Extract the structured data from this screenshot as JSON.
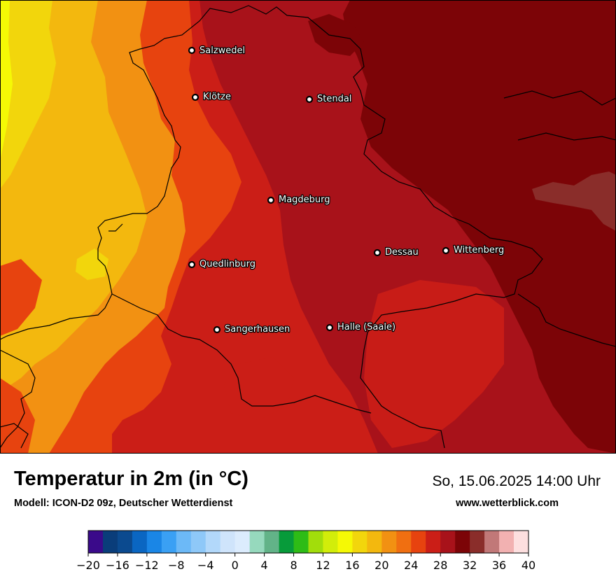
{
  "title": "Temperatur in 2m (in °C)",
  "model_info": "Modell: ICON-D2 09z, Deutscher Wetterdienst",
  "datetime": "So, 15.06.2025 14:00 Uhr",
  "website": "www.wetterblick.com",
  "cities": [
    {
      "name": "Salzwedel"
    },
    {
      "name": "Klötze"
    },
    {
      "name": "Stendal"
    },
    {
      "name": "Magdeburg"
    },
    {
      "name": "Dessau"
    },
    {
      "name": "Wittenberg"
    },
    {
      "name": "Quedlinburg"
    },
    {
      "name": "Sangerhausen"
    },
    {
      "name": "Halle (Saale)"
    }
  ],
  "legend": {
    "min": -20,
    "max": 40,
    "step": 2,
    "tick_labels": [
      "−20",
      "−16",
      "−12",
      "−8",
      "−4",
      "0",
      "4",
      "8",
      "12",
      "16",
      "20",
      "24",
      "28",
      "32",
      "36",
      "40"
    ],
    "colors": [
      "#3a0a8a",
      "#0a3d7a",
      "#0b4a8f",
      "#0a66c2",
      "#1a86e6",
      "#3aa0f4",
      "#6cb9f7",
      "#8ec8f8",
      "#b2d8fa",
      "#cfe4fb",
      "#dcecfd",
      "#96d9bd",
      "#62b388",
      "#079b3a",
      "#2ebc16",
      "#a2dd0b",
      "#d2ed0a",
      "#f5f905",
      "#f2d60c",
      "#f3b80e",
      "#f29112",
      "#f06f11",
      "#e7430f",
      "#cb1e17",
      "#a8121a",
      "#7c0407",
      "#8a2d2a",
      "#c17878",
      "#f2b1b1",
      "#fddfdf"
    ]
  },
  "map_colors": {
    "yellow": "#f2d60c",
    "orange_light": "#f3b80e",
    "orange": "#f29112",
    "orange_red": "#e7430f",
    "red": "#cb1e17",
    "dark_red": "#a8121a",
    "maroon": "#7c0407",
    "brown_patch": "#8a2d2a"
  }
}
